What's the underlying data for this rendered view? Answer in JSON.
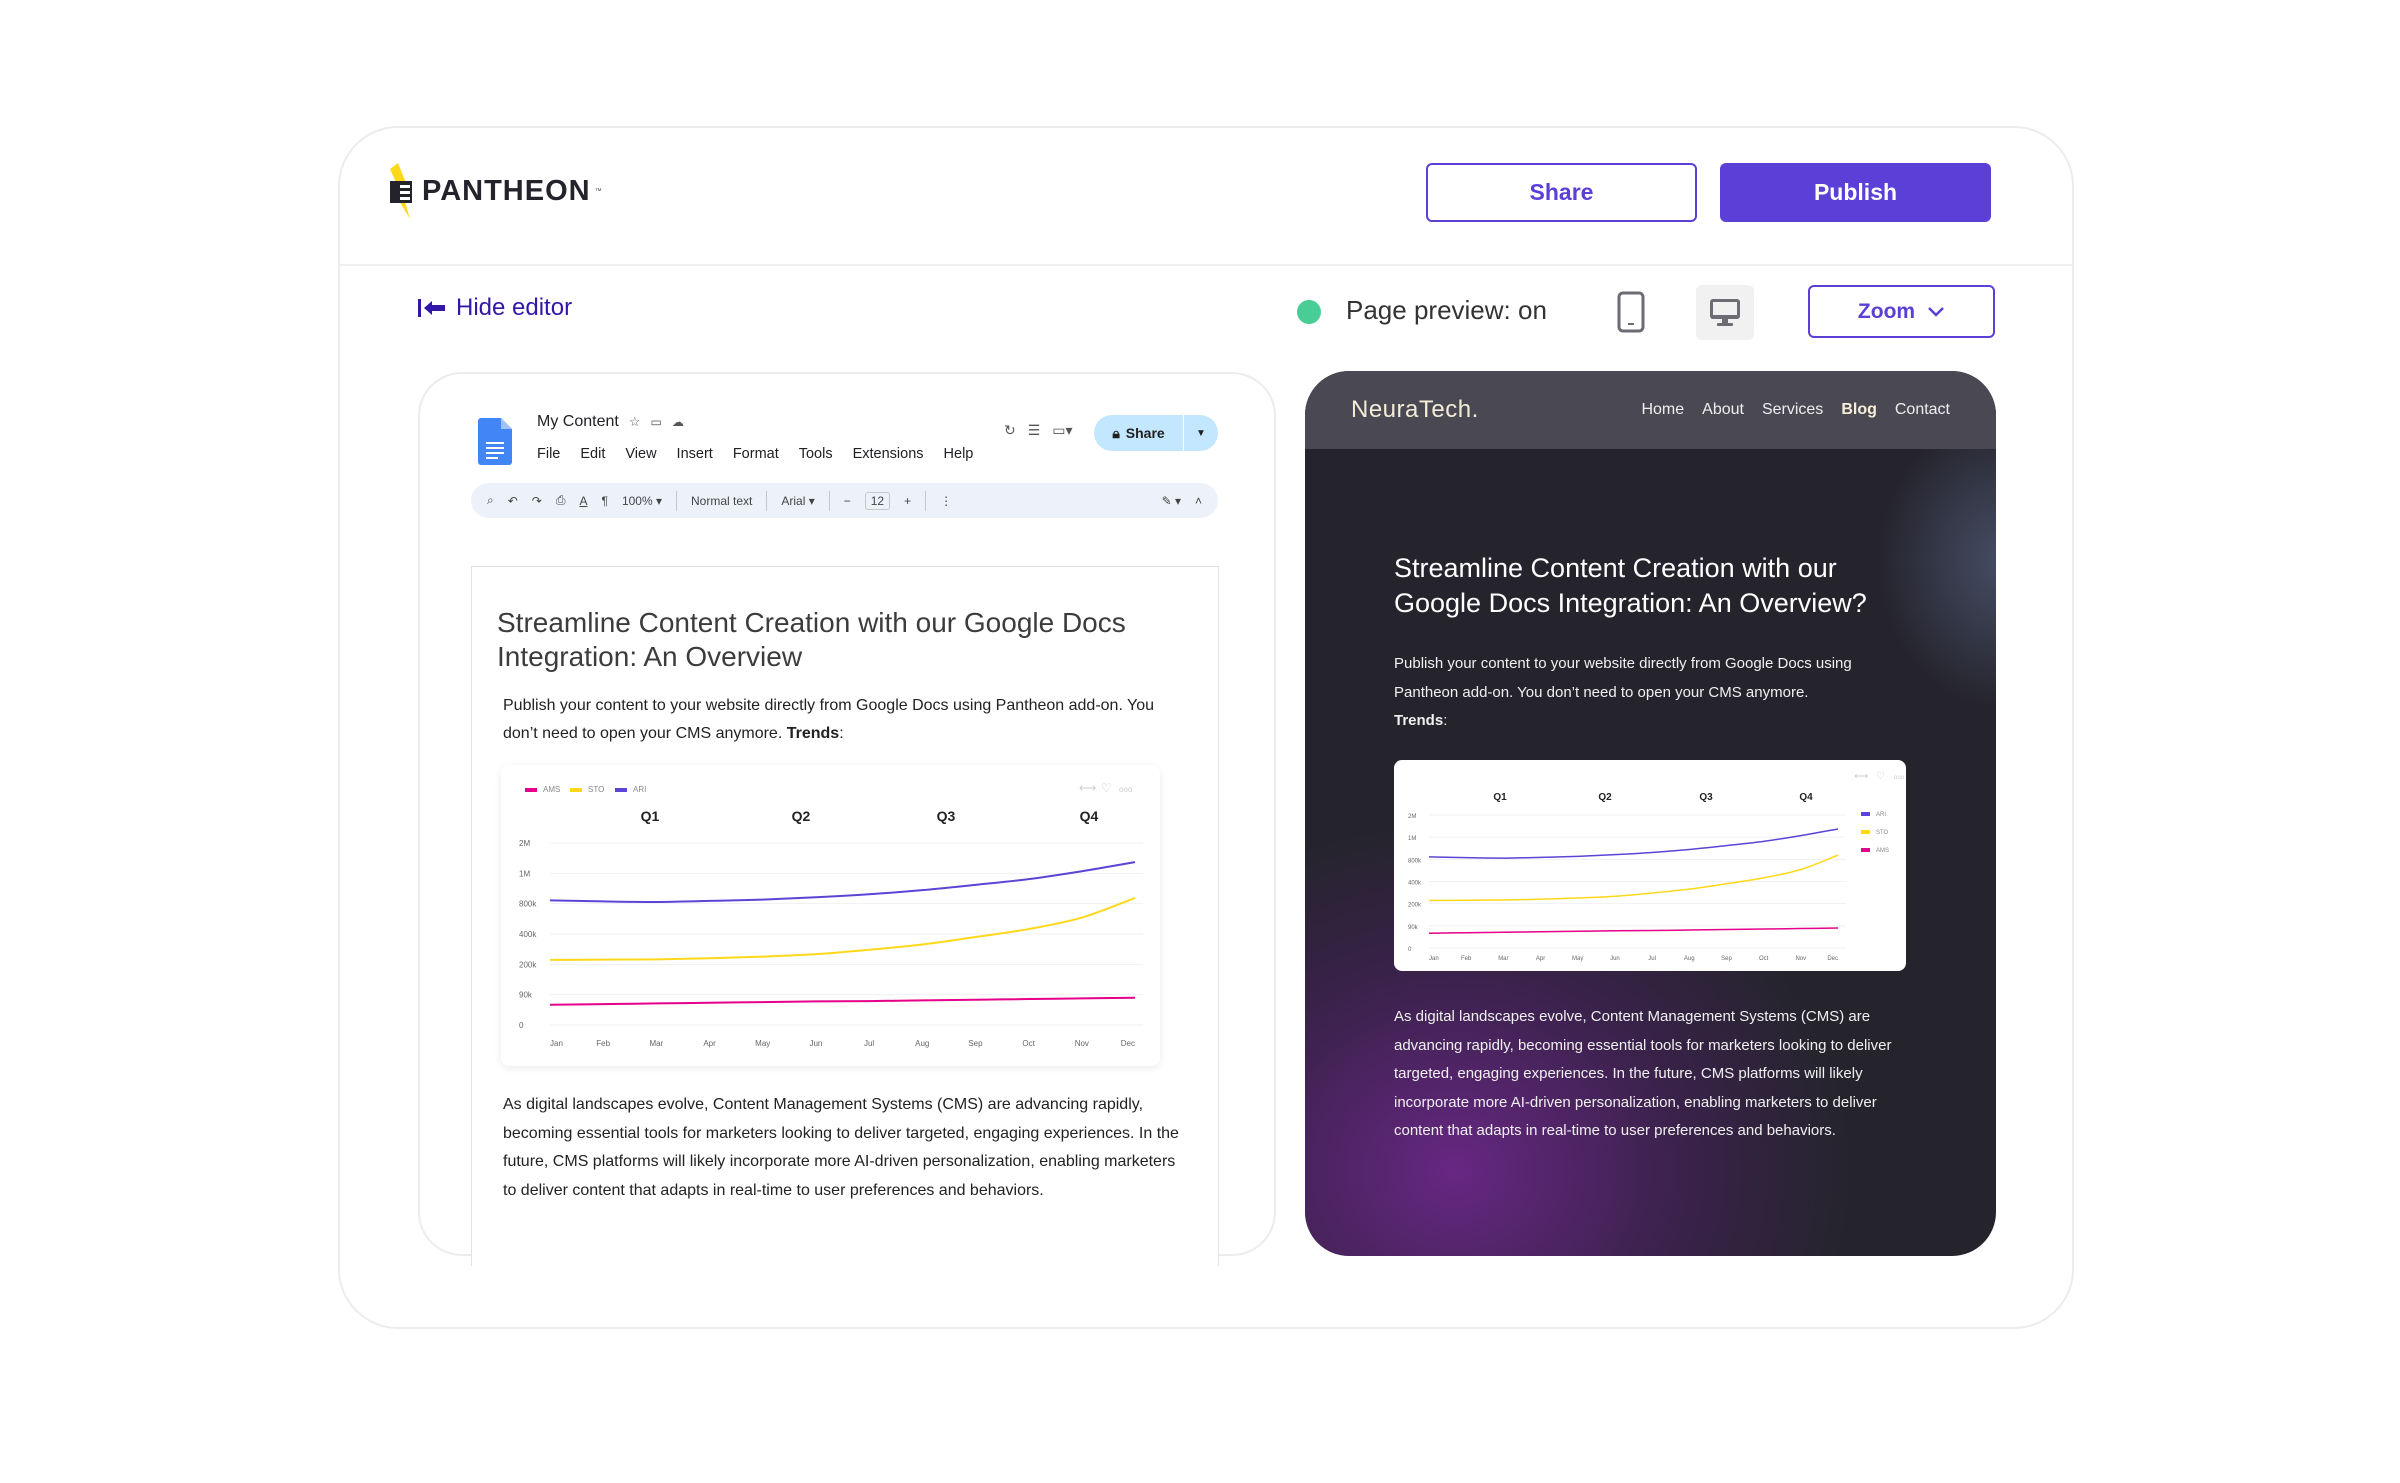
{
  "app": {
    "logo_text": "PANTHEON",
    "logo_tm": "™",
    "share_label": "Share",
    "publish_label": "Publish"
  },
  "toolbar": {
    "hide_editor": "Hide editor",
    "preview_status": "Page preview: on",
    "status_color": "#48cd95",
    "zoom_label": "Zoom",
    "accent": "#5b3fd6",
    "device_selected": "desktop"
  },
  "gdoc": {
    "title": "My Content",
    "menu": [
      "File",
      "Edit",
      "View",
      "Insert",
      "Format",
      "Tools",
      "Extensions",
      "Help"
    ],
    "share_label": "Share",
    "zoom": "100%",
    "style": "Normal text",
    "font": "Arial",
    "font_size": "12",
    "heading": "Streamline Content Creation with our Google Docs Integration: An Overview",
    "p1_text": "Publish your content to your website directly from Google Docs using Pantheon add-on. You don’t need to open your CMS anymore. ",
    "p1_bold": "Trends",
    "p1_end": ":",
    "p2": "As digital landscapes evolve, Content Management Systems (CMS) are advancing rapidly, becoming essential tools for marketers looking to deliver targeted, engaging experiences. In the future, CMS platforms will likely incorporate more AI-driven personalization, enabling marketers to deliver content that adapts in real-time to user preferences and behaviors."
  },
  "preview": {
    "brand": "NeuraTech.",
    "nav": [
      "Home",
      "About",
      "Services",
      "Blog",
      "Contact"
    ],
    "active_nav": "Blog",
    "heading": "Streamline Content Creation with our Google Docs Integration: An Overview?",
    "p1_text": "Publish your content to your website directly from Google Docs using Pantheon add-on. You don’t need to open your CMS anymore. ",
    "p1_bold": "Trends",
    "p1_end": ":",
    "p2": "As digital landscapes evolve, Content Management Systems (CMS) are advancing rapidly, becoming essential tools for marketers looking to deliver targeted, engaging experiences. In the future, CMS platforms will likely incorporate more AI-driven personalization, enabling marketers to deliver content that adapts in real-time to user preferences and behaviors."
  },
  "chart_data": {
    "type": "line",
    "categories": [
      "Jan",
      "Feb",
      "Mar",
      "Apr",
      "May",
      "Jun",
      "Jul",
      "Aug",
      "Sep",
      "Oct",
      "Nov",
      "Dec"
    ],
    "quarters": [
      "Q1",
      "Q2",
      "Q3",
      "Q4"
    ],
    "y_ticks": [
      0,
      90000,
      200000,
      400000,
      800000,
      1000000,
      2000000
    ],
    "y_tick_labels": [
      "0",
      "90k",
      "200k",
      "400k",
      "800k",
      "1M",
      "2M"
    ],
    "ylim": [
      0,
      2000000
    ],
    "grid": true,
    "series": [
      {
        "name": "AMS",
        "color": "#e6008a",
        "values": [
          60000,
          62000,
          64000,
          66000,
          68000,
          70000,
          71000,
          73000,
          75000,
          77000,
          79000,
          81000
        ]
      },
      {
        "name": "STO",
        "color": "#ffd81a",
        "values": [
          229000,
          231000,
          233000,
          240000,
          251000,
          267000,
          296000,
          331000,
          380000,
          465000,
          617000,
          838000
        ]
      },
      {
        "name": "ARI",
        "color": "#5a45d6",
        "values": [
          822000,
          815000,
          811000,
          818000,
          827000,
          842000,
          862000,
          889000,
          924000,
          962000,
          1070000,
          1370000
        ]
      }
    ]
  }
}
